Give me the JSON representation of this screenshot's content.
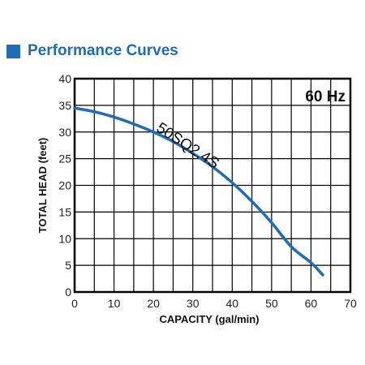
{
  "section": {
    "title": "Performance Curves",
    "accent_color": "#1f6db5"
  },
  "chart_data": {
    "type": "line",
    "annotation": "60 Hz",
    "xlabel": "CAPACITY (gal/min)",
    "ylabel": "TOTAL HEAD (feet)",
    "xlim": [
      0,
      70
    ],
    "ylim": [
      0,
      40
    ],
    "xticks": [
      0,
      10,
      20,
      30,
      40,
      50,
      60,
      70
    ],
    "yticks": [
      0,
      5,
      10,
      15,
      20,
      25,
      30,
      35,
      40
    ],
    "grid": true,
    "series": [
      {
        "name": "50SQ2.4S",
        "color": "#1f6db5",
        "x": [
          0,
          5,
          10,
          15,
          20,
          25,
          30,
          35,
          40,
          45,
          50,
          55,
          60,
          63
        ],
        "y": [
          34.5,
          33.8,
          32.8,
          31.5,
          30.0,
          28.2,
          26.0,
          23.5,
          20.5,
          17.0,
          13.0,
          8.5,
          5.5,
          3.2
        ]
      }
    ]
  }
}
